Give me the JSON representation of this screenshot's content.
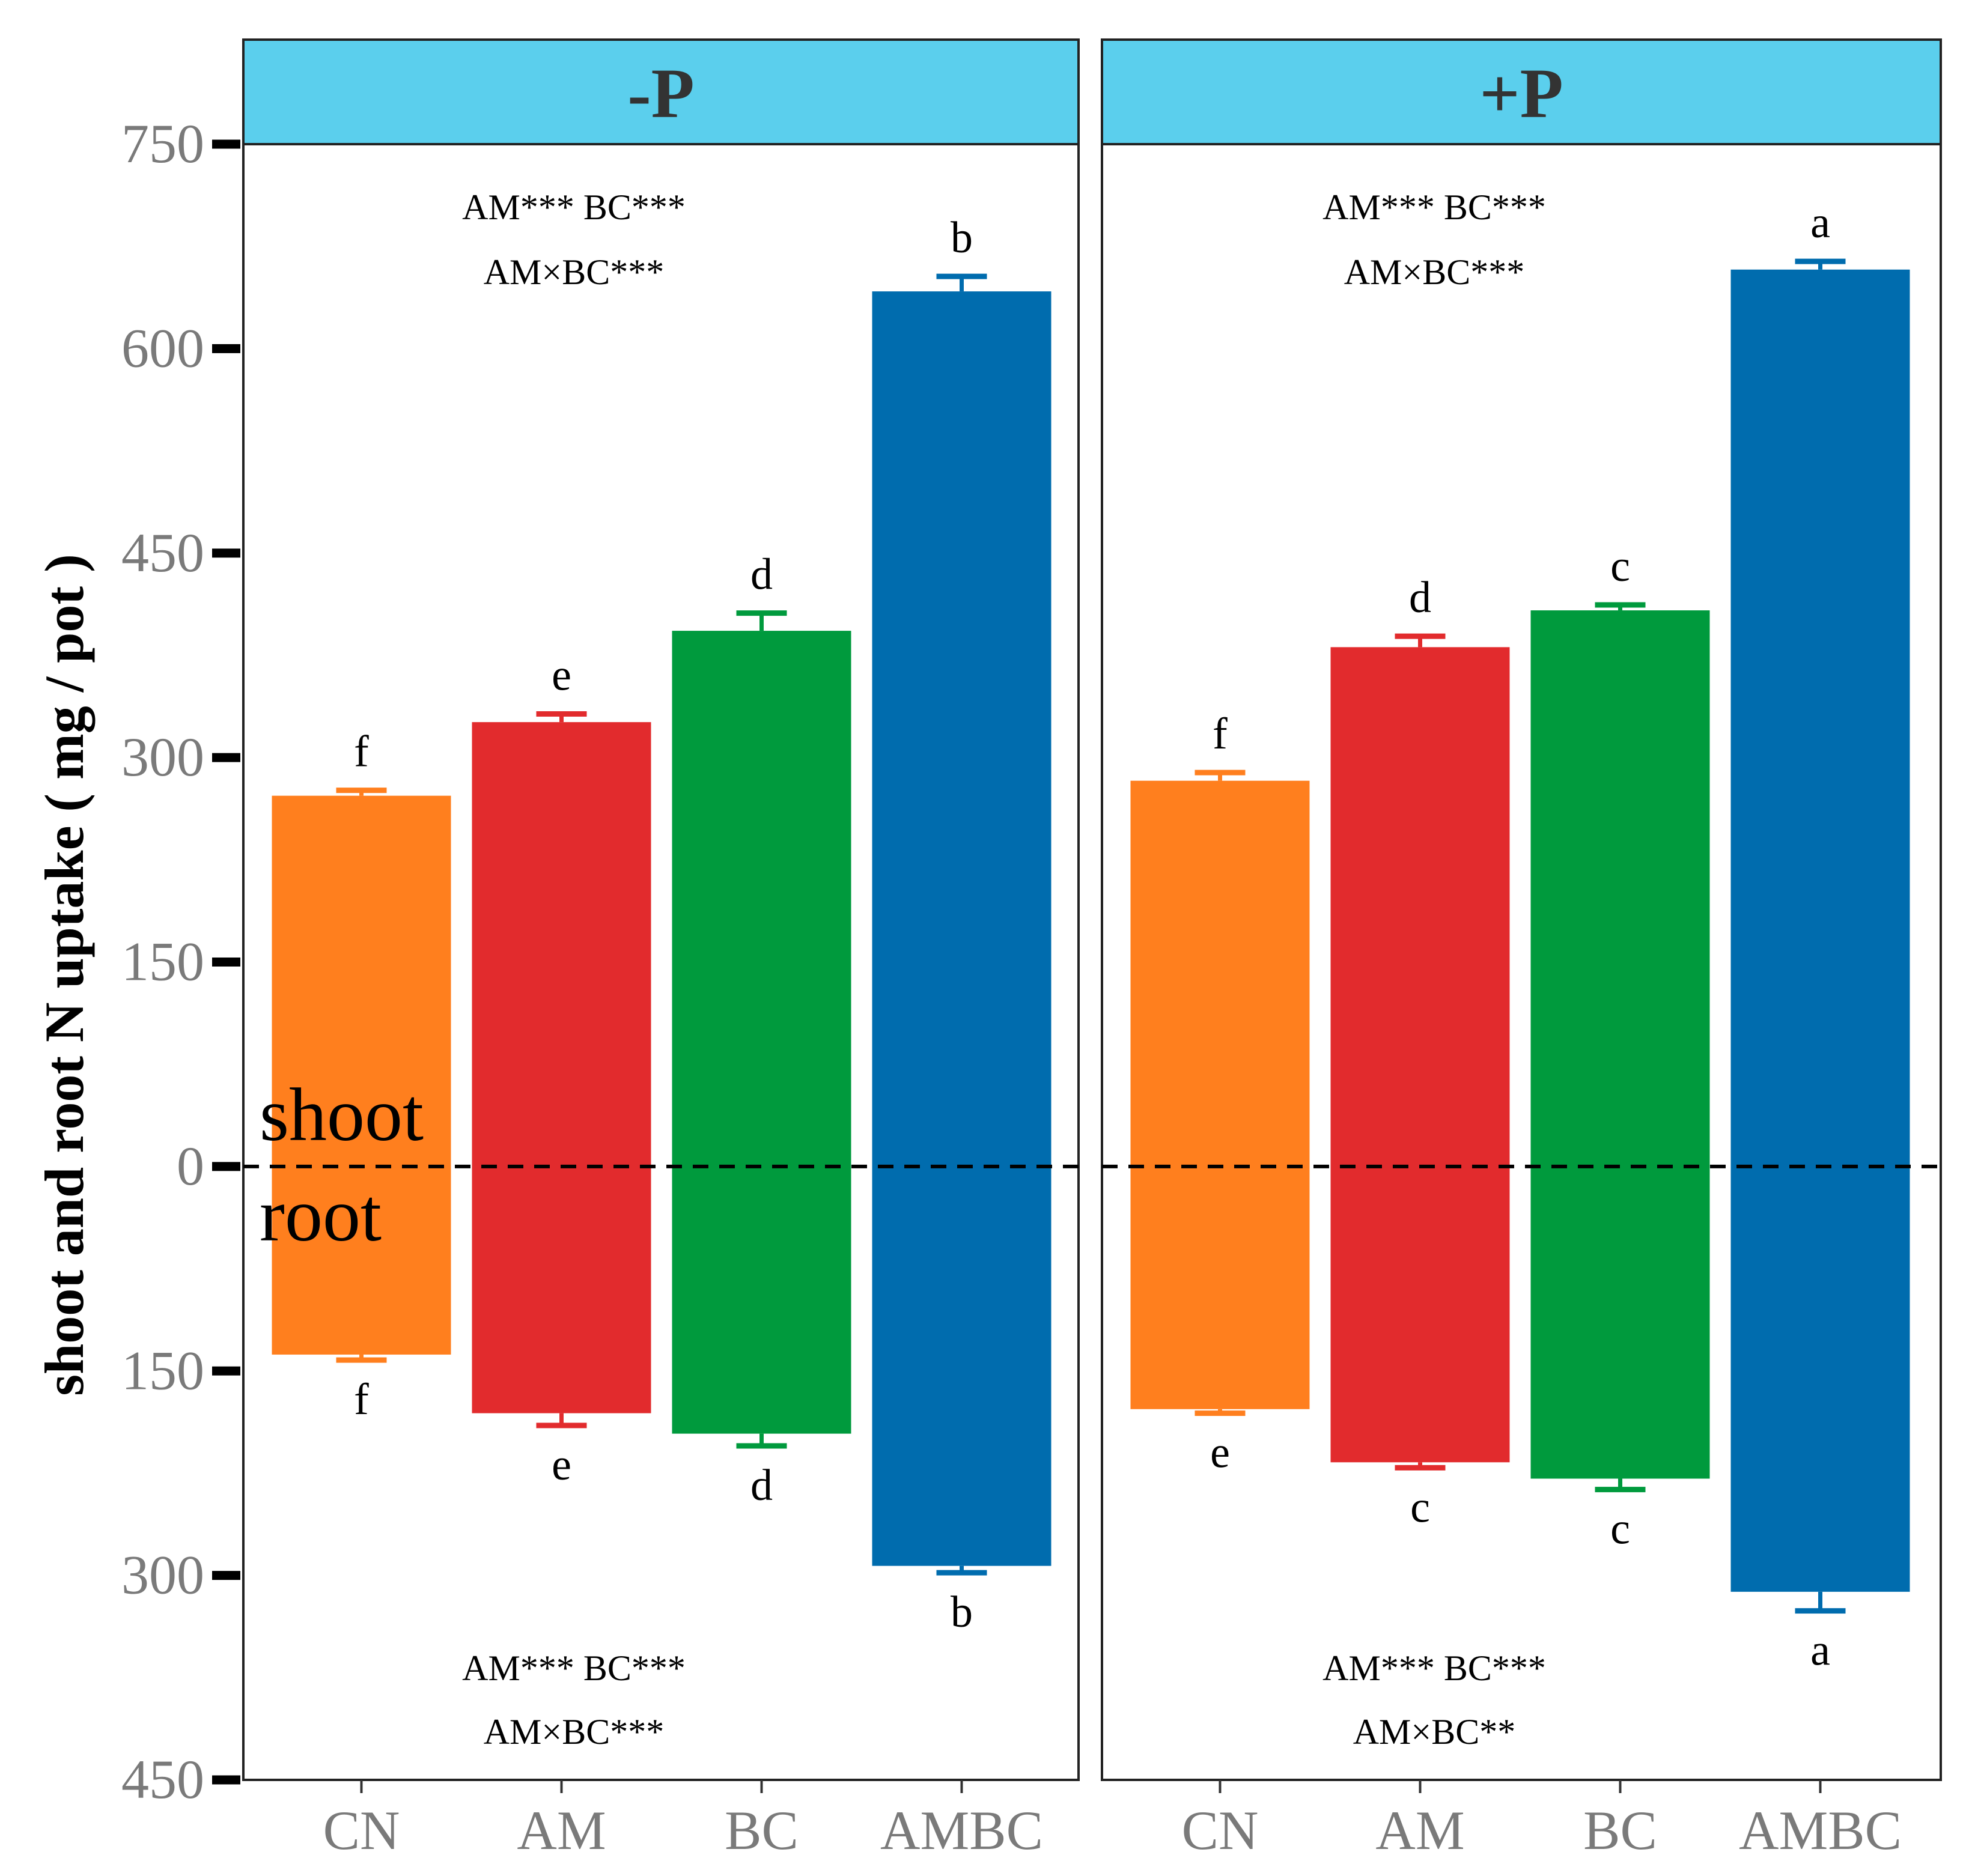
{
  "chart_data": {
    "type": "bar",
    "ylabel": "shoot and root N uptake ( mg / pot )",
    "ylim": [
      -450,
      750
    ],
    "yticks": [
      750,
      600,
      450,
      300,
      150,
      0,
      -150,
      -300,
      -450
    ],
    "ytick_labels": [
      "750",
      "600",
      "450",
      "300",
      "150",
      "0",
      "150",
      "300",
      "450"
    ],
    "categories": [
      "CN",
      "AM",
      "BC",
      "AMBC"
    ],
    "colors": [
      "#FF7F1E",
      "#E22B2D",
      "#009A3D",
      "#006CAE"
    ],
    "strip_color": "#5BCFED",
    "shoot_label": "shoot",
    "root_label": "root",
    "panels": [
      {
        "name": "-P",
        "shoot": [
          272,
          326,
          393,
          642
        ],
        "shoot_err": [
          4,
          6,
          13,
          11
        ],
        "root": [
          -138,
          -181,
          -196,
          -293
        ],
        "root_err": [
          4,
          9,
          9,
          5
        ],
        "shoot_letters": [
          "f",
          "e",
          "d",
          "b"
        ],
        "root_letters": [
          "f",
          "e",
          "d",
          "b"
        ],
        "shoot_sig": [
          "AM*** BC***",
          "AM×BC***"
        ],
        "root_sig": [
          "AM*** BC***",
          "AM×BC***"
        ]
      },
      {
        "name": "+P",
        "shoot": [
          283,
          381,
          408,
          658
        ],
        "shoot_err": [
          6,
          8,
          4,
          6
        ],
        "root": [
          -178,
          -217,
          -229,
          -312
        ],
        "root_err": [
          3,
          4,
          8,
          14
        ],
        "shoot_letters": [
          "f",
          "d",
          "c",
          "a"
        ],
        "root_letters": [
          "e",
          "c",
          "c",
          "a"
        ],
        "shoot_sig": [
          "AM*** BC***",
          "AM×BC***"
        ],
        "root_sig": [
          "AM*** BC***",
          "AM×BC**"
        ]
      }
    ]
  }
}
